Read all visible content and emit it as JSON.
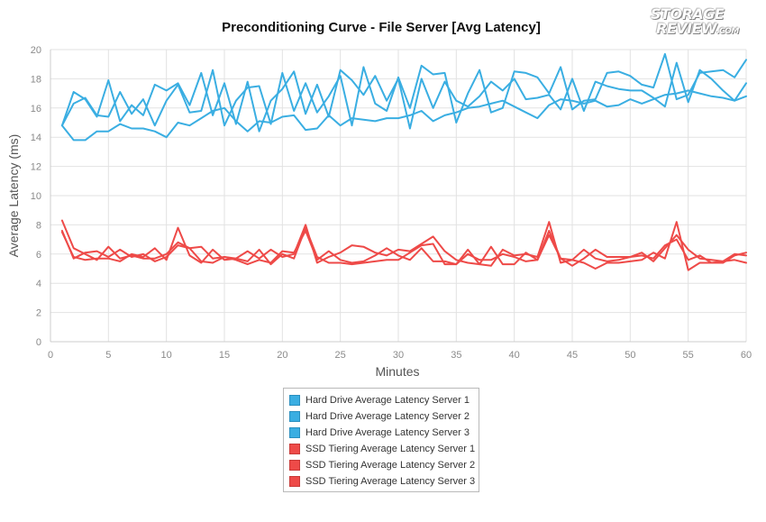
{
  "logo": {
    "line1": "STORAGE",
    "line2": "REVIEW",
    "suffix": ".COM"
  },
  "chart_data": {
    "type": "line",
    "title": "Preconditioning Curve - File Server [Avg Latency]",
    "xlabel": "Minutes",
    "ylabel": "Average Latency (ms)",
    "xlim": [
      0,
      60
    ],
    "ylim": [
      0,
      20
    ],
    "xticks": [
      0,
      5,
      10,
      15,
      20,
      25,
      30,
      35,
      40,
      45,
      50,
      55,
      60
    ],
    "yticks": [
      0,
      2,
      4,
      6,
      8,
      10,
      12,
      14,
      16,
      18,
      20
    ],
    "grid": true,
    "legend_position": "bottom-center",
    "x": [
      1,
      2,
      3,
      4,
      5,
      6,
      7,
      8,
      9,
      10,
      11,
      12,
      13,
      14,
      15,
      16,
      17,
      18,
      19,
      20,
      21,
      22,
      23,
      24,
      25,
      26,
      27,
      28,
      29,
      30,
      31,
      32,
      33,
      34,
      35,
      36,
      37,
      38,
      39,
      40,
      41,
      42,
      43,
      44,
      45,
      46,
      47,
      48,
      49,
      50,
      51,
      52,
      53,
      54,
      55,
      56,
      57,
      58,
      59,
      60
    ],
    "series": [
      {
        "name": "Hard Drive Average Latency Server 1",
        "color": "#3aaee2",
        "values": [
          14.8,
          13.8,
          13.8,
          14.4,
          14.4,
          14.9,
          14.6,
          14.6,
          14.4,
          14.0,
          15.0,
          14.8,
          15.3,
          15.8,
          16.0,
          15.1,
          14.4,
          15.1,
          15.0,
          15.4,
          15.5,
          14.5,
          14.6,
          15.5,
          14.8,
          15.3,
          15.2,
          15.1,
          15.3,
          15.3,
          15.5,
          15.8,
          15.1,
          15.5,
          15.7,
          16.0,
          16.1,
          16.3,
          16.5,
          16.1,
          15.7,
          15.3,
          16.2,
          16.6,
          16.5,
          16.3,
          16.5,
          16.1,
          16.2,
          16.6,
          16.3,
          16.6,
          16.9,
          17.0,
          17.2,
          17.0,
          16.8,
          16.7,
          16.5,
          16.8
        ]
      },
      {
        "name": "Hard Drive Average Latency Server 2",
        "color": "#3aaee2",
        "values": [
          14.8,
          16.3,
          16.7,
          15.5,
          15.4,
          17.1,
          15.6,
          16.6,
          14.8,
          16.5,
          17.6,
          15.7,
          15.8,
          18.6,
          14.8,
          16.5,
          17.4,
          17.5,
          14.9,
          18.4,
          15.8,
          17.7,
          15.7,
          16.8,
          18.2,
          14.8,
          18.8,
          16.3,
          15.8,
          18.1,
          16.0,
          18.9,
          18.3,
          18.4,
          15.0,
          17.0,
          18.6,
          15.7,
          16.0,
          18.5,
          18.4,
          18.1,
          17.0,
          18.8,
          15.9,
          16.5,
          16.6,
          18.4,
          18.5,
          18.2,
          17.6,
          17.4,
          19.7,
          16.6,
          16.9,
          18.4,
          18.5,
          18.6,
          18.1,
          19.3
        ]
      },
      {
        "name": "Hard Drive Average Latency Server 3",
        "color": "#3aaee2",
        "values": [
          14.8,
          17.1,
          16.6,
          15.4,
          17.9,
          15.1,
          16.2,
          15.5,
          17.6,
          17.2,
          17.7,
          16.2,
          18.4,
          15.5,
          17.7,
          14.9,
          17.8,
          14.4,
          16.5,
          17.3,
          18.5,
          15.6,
          17.6,
          15.4,
          18.6,
          17.9,
          16.9,
          18.2,
          16.5,
          18.0,
          14.6,
          18.0,
          16.0,
          17.8,
          16.5,
          16.1,
          16.8,
          17.8,
          17.2,
          18.0,
          16.6,
          16.7,
          16.9,
          15.9,
          18.0,
          15.8,
          17.8,
          17.5,
          17.3,
          17.2,
          17.2,
          16.7,
          16.1,
          19.1,
          16.4,
          18.6,
          18.0,
          17.2,
          16.5,
          17.7
        ]
      },
      {
        "name": "SSD Tiering Average Latency Server 1",
        "color": "#ee4a48",
        "values": [
          7.6,
          5.7,
          6.1,
          6.2,
          5.8,
          6.3,
          5.8,
          6.0,
          5.5,
          5.8,
          6.6,
          6.4,
          6.5,
          5.7,
          5.8,
          5.7,
          6.2,
          5.7,
          6.3,
          5.8,
          6.0,
          8.0,
          5.4,
          5.8,
          6.1,
          6.6,
          6.5,
          6.1,
          5.9,
          6.3,
          6.2,
          6.7,
          7.2,
          6.2,
          5.6,
          5.4,
          5.3,
          5.2,
          6.3,
          5.9,
          6.0,
          5.8,
          8.2,
          5.4,
          5.6,
          5.4,
          5.0,
          5.4,
          5.4,
          5.5,
          5.6,
          6.1,
          5.7,
          8.2,
          4.9,
          5.4,
          5.4,
          5.5,
          5.6,
          5.4
        ]
      },
      {
        "name": "SSD Tiering Average Latency Server 2",
        "color": "#ee4a48",
        "values": [
          8.3,
          6.4,
          6.0,
          5.6,
          6.5,
          5.7,
          5.9,
          5.7,
          5.7,
          6.0,
          6.8,
          6.4,
          5.5,
          5.4,
          5.8,
          5.6,
          5.3,
          5.6,
          5.4,
          6.2,
          6.1,
          7.6,
          5.6,
          6.2,
          5.6,
          5.4,
          5.5,
          5.9,
          6.4,
          5.9,
          5.6,
          6.4,
          5.5,
          5.5,
          5.3,
          6.0,
          5.6,
          5.6,
          6.0,
          5.8,
          5.5,
          5.6,
          7.3,
          5.7,
          5.6,
          6.3,
          5.7,
          5.5,
          5.6,
          5.8,
          5.9,
          5.7,
          6.6,
          7.0,
          5.6,
          5.9,
          5.4,
          5.4,
          5.9,
          6.1
        ]
      },
      {
        "name": "SSD Tiering Average Latency Server 3",
        "color": "#ee4a48",
        "values": [
          7.5,
          5.8,
          5.6,
          5.7,
          5.7,
          5.5,
          6.0,
          5.8,
          6.4,
          5.6,
          7.8,
          5.9,
          5.4,
          6.3,
          5.6,
          5.7,
          5.5,
          6.3,
          5.3,
          6.0,
          5.7,
          7.8,
          5.8,
          5.4,
          5.4,
          5.3,
          5.4,
          5.5,
          5.6,
          5.6,
          6.1,
          6.6,
          6.7,
          5.3,
          5.3,
          6.3,
          5.3,
          6.5,
          5.3,
          5.3,
          6.1,
          5.6,
          7.6,
          5.7,
          5.2,
          5.7,
          6.3,
          5.8,
          5.8,
          5.8,
          6.1,
          5.5,
          6.4,
          7.3,
          6.3,
          5.7,
          5.6,
          5.5,
          6.0,
          5.9
        ]
      }
    ]
  }
}
